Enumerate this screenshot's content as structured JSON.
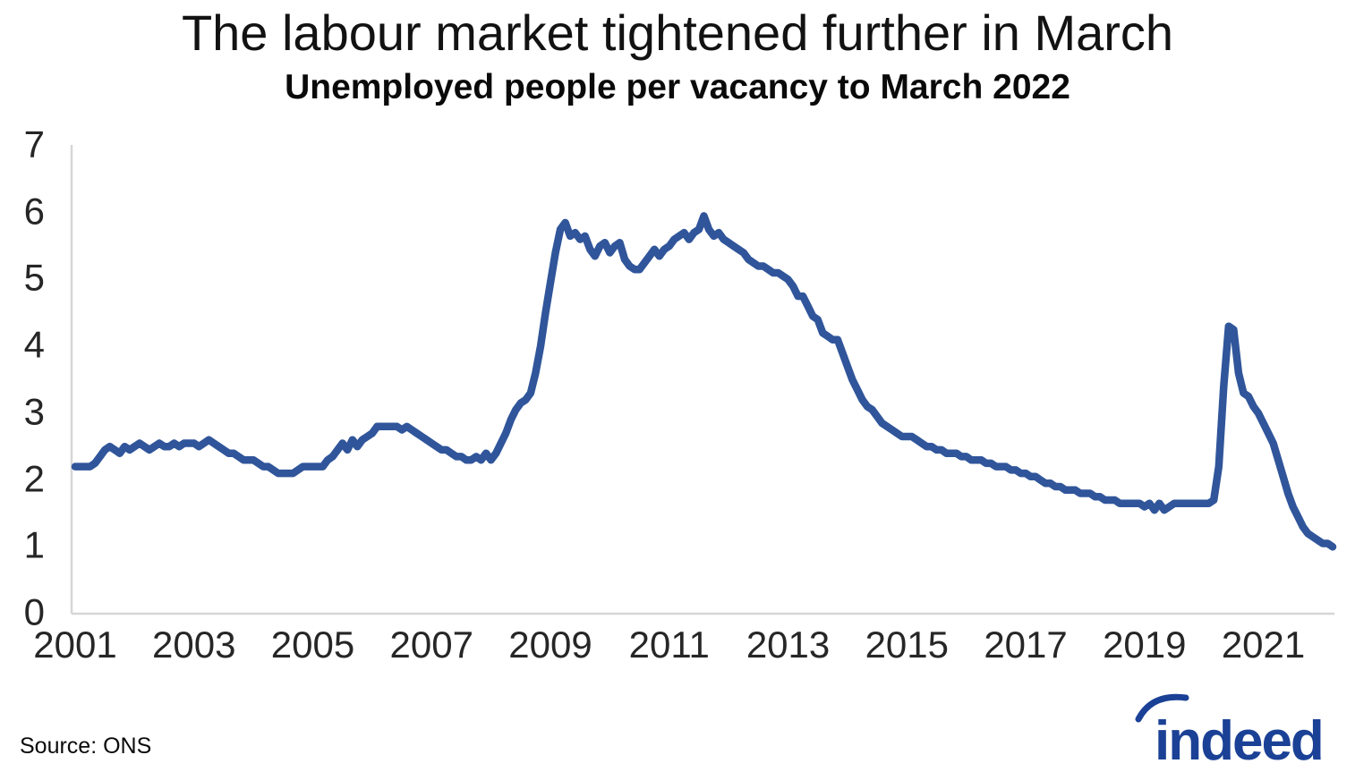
{
  "header": {
    "title": "The labour market tightened further in March",
    "subtitle": "Unemployed people per vacancy to March 2022"
  },
  "footer": {
    "source": "Source: ONS",
    "logo_text": "indeed"
  },
  "colors": {
    "line": "#30559a",
    "axis": "#d6d6d6",
    "tick_text": "#262626",
    "logo": "#1b4196"
  },
  "chart_data": {
    "type": "line",
    "title": "The labour market tightened further in March",
    "subtitle": "Unemployed people per vacancy to March 2022",
    "xlabel": "",
    "ylabel": "",
    "x_unit": "monthly, Jan 2001 to Mar 2022",
    "ylim": [
      0,
      7
    ],
    "y_ticks": [
      0,
      1,
      2,
      3,
      4,
      5,
      6,
      7
    ],
    "x_tick_labels": [
      "2001",
      "2003",
      "2005",
      "2007",
      "2009",
      "2011",
      "2013",
      "2015",
      "2017",
      "2019",
      "2021"
    ],
    "grid": false,
    "legend": false,
    "series": [
      {
        "name": "Unemployed people per vacancy",
        "start": "2001-01",
        "end": "2022-03",
        "values": [
          2.2,
          2.2,
          2.2,
          2.2,
          2.25,
          2.35,
          2.45,
          2.5,
          2.45,
          2.4,
          2.5,
          2.45,
          2.5,
          2.55,
          2.5,
          2.45,
          2.5,
          2.55,
          2.5,
          2.5,
          2.55,
          2.5,
          2.55,
          2.55,
          2.55,
          2.5,
          2.55,
          2.6,
          2.55,
          2.5,
          2.45,
          2.4,
          2.4,
          2.35,
          2.3,
          2.3,
          2.3,
          2.25,
          2.2,
          2.2,
          2.15,
          2.1,
          2.1,
          2.1,
          2.1,
          2.15,
          2.2,
          2.2,
          2.2,
          2.2,
          2.2,
          2.3,
          2.35,
          2.45,
          2.55,
          2.45,
          2.6,
          2.5,
          2.6,
          2.65,
          2.7,
          2.8,
          2.8,
          2.8,
          2.8,
          2.8,
          2.75,
          2.8,
          2.75,
          2.7,
          2.65,
          2.6,
          2.55,
          2.5,
          2.45,
          2.45,
          2.4,
          2.35,
          2.35,
          2.3,
          2.3,
          2.35,
          2.3,
          2.4,
          2.3,
          2.4,
          2.55,
          2.7,
          2.9,
          3.05,
          3.15,
          3.2,
          3.3,
          3.6,
          4.0,
          4.5,
          4.95,
          5.4,
          5.75,
          5.85,
          5.65,
          5.7,
          5.6,
          5.65,
          5.45,
          5.35,
          5.5,
          5.55,
          5.4,
          5.5,
          5.55,
          5.3,
          5.2,
          5.15,
          5.15,
          5.25,
          5.35,
          5.45,
          5.35,
          5.45,
          5.5,
          5.6,
          5.65,
          5.7,
          5.6,
          5.7,
          5.75,
          5.95,
          5.75,
          5.65,
          5.7,
          5.6,
          5.55,
          5.5,
          5.45,
          5.4,
          5.3,
          5.25,
          5.2,
          5.2,
          5.15,
          5.1,
          5.1,
          5.05,
          5.0,
          4.9,
          4.75,
          4.75,
          4.6,
          4.45,
          4.4,
          4.2,
          4.15,
          4.1,
          4.1,
          3.9,
          3.7,
          3.5,
          3.35,
          3.2,
          3.1,
          3.05,
          2.95,
          2.85,
          2.8,
          2.75,
          2.7,
          2.65,
          2.65,
          2.65,
          2.6,
          2.55,
          2.5,
          2.5,
          2.45,
          2.45,
          2.4,
          2.4,
          2.4,
          2.35,
          2.35,
          2.3,
          2.3,
          2.3,
          2.25,
          2.25,
          2.2,
          2.2,
          2.2,
          2.15,
          2.15,
          2.1,
          2.1,
          2.05,
          2.05,
          2.0,
          1.95,
          1.95,
          1.9,
          1.9,
          1.85,
          1.85,
          1.85,
          1.8,
          1.8,
          1.8,
          1.75,
          1.75,
          1.7,
          1.7,
          1.7,
          1.65,
          1.65,
          1.65,
          1.65,
          1.65,
          1.6,
          1.65,
          1.55,
          1.65,
          1.55,
          1.6,
          1.65,
          1.65,
          1.65,
          1.65,
          1.65,
          1.65,
          1.65,
          1.65,
          1.7,
          2.2,
          3.4,
          4.3,
          4.25,
          3.6,
          3.3,
          3.25,
          3.1,
          3.0,
          2.85,
          2.7,
          2.55,
          2.3,
          2.05,
          1.8,
          1.6,
          1.45,
          1.3,
          1.2,
          1.15,
          1.1,
          1.05,
          1.05,
          1.0
        ]
      }
    ]
  }
}
